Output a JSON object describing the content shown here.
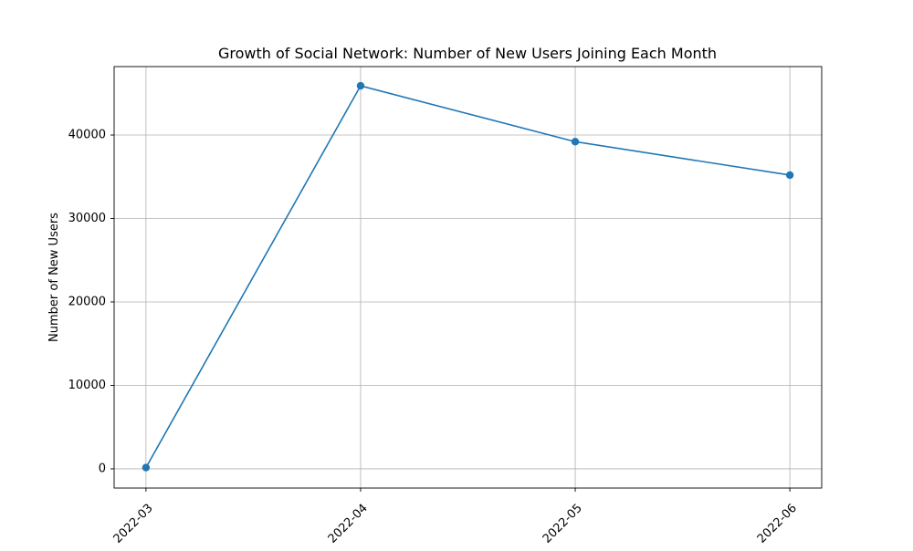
{
  "chart_data": {
    "type": "line",
    "title": "Growth of Social Network: Number of New Users Joining Each Month",
    "xlabel": "",
    "ylabel": "Number of New Users",
    "x": [
      "2022-03",
      "2022-04",
      "2022-05",
      "2022-06"
    ],
    "x_tick_labels": [
      "2022-03",
      "2022-04",
      "2022-05",
      "2022-06"
    ],
    "y_ticks": [
      0,
      10000,
      20000,
      30000,
      40000
    ],
    "y_tick_labels": [
      "0",
      "10000",
      "20000",
      "30000",
      "40000"
    ],
    "ylim": [
      -2300,
      48200
    ],
    "series": [
      {
        "values": [
          150,
          45900,
          39200,
          35200
        ],
        "color": "#1f77b4",
        "marker": "circle"
      }
    ],
    "grid": true,
    "x_tick_rotation_deg": 45,
    "legend": "none"
  }
}
